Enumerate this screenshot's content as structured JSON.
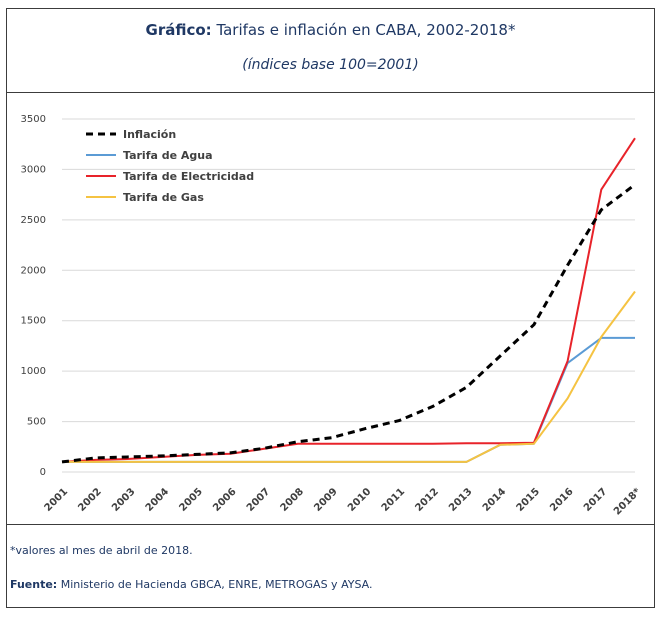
{
  "header": {
    "title_bold": "Gráfico:",
    "title_rest": " Tarifas e inflación en CABA, 2002-2018*",
    "subtitle": "(índices base 100=2001)"
  },
  "footer": {
    "note": "*valores al mes de abril de 2018.",
    "source_label": "Fuente:",
    "source_text": " Ministerio de Hacienda GBCA, ENRE, METROGAS y AYSA."
  },
  "colors": {
    "inflacion": "#000000",
    "agua": "#5b9bd5",
    "electricidad": "#e8232a",
    "gas": "#f5c342",
    "grid": "#d9d9d9"
  },
  "chart_data": {
    "type": "line",
    "title": "Tarifas e inflación en CABA, 2002-2018*",
    "subtitle": "(índices base 100=2001)",
    "categories": [
      "2001",
      "2002",
      "2003",
      "2004",
      "2005",
      "2006",
      "2007",
      "2008",
      "2009",
      "2010",
      "2011",
      "2012",
      "2013",
      "2014",
      "2015",
      "2016",
      "2017",
      "2018*"
    ],
    "ylim": [
      0,
      3500
    ],
    "yticks": [
      "0",
      "500",
      "1000",
      "1500",
      "2000",
      "2500",
      "3000",
      "3500"
    ],
    "grid": true,
    "legend_position": "top-left",
    "series": [
      {
        "name": "Inflación",
        "style": "dashed",
        "values": [
          100,
          140,
          150,
          160,
          175,
          190,
          235,
          300,
          340,
          430,
          510,
          650,
          840,
          1150,
          1460,
          2050,
          2600,
          2850
        ]
      },
      {
        "name": "Tarifa de Agua",
        "style": "solid",
        "values": [
          100,
          100,
          100,
          100,
          100,
          100,
          100,
          100,
          100,
          100,
          100,
          100,
          100,
          270,
          280,
          1080,
          1330,
          1330
        ]
      },
      {
        "name": "Tarifa de Electricidad",
        "style": "solid",
        "values": [
          100,
          120,
          130,
          150,
          170,
          180,
          230,
          280,
          280,
          280,
          280,
          280,
          285,
          285,
          290,
          1100,
          2800,
          3310
        ]
      },
      {
        "name": "Tarifa de Gas",
        "style": "solid",
        "values": [
          100,
          100,
          100,
          100,
          100,
          100,
          100,
          100,
          100,
          100,
          100,
          100,
          100,
          270,
          280,
          730,
          1340,
          1790
        ]
      }
    ]
  }
}
